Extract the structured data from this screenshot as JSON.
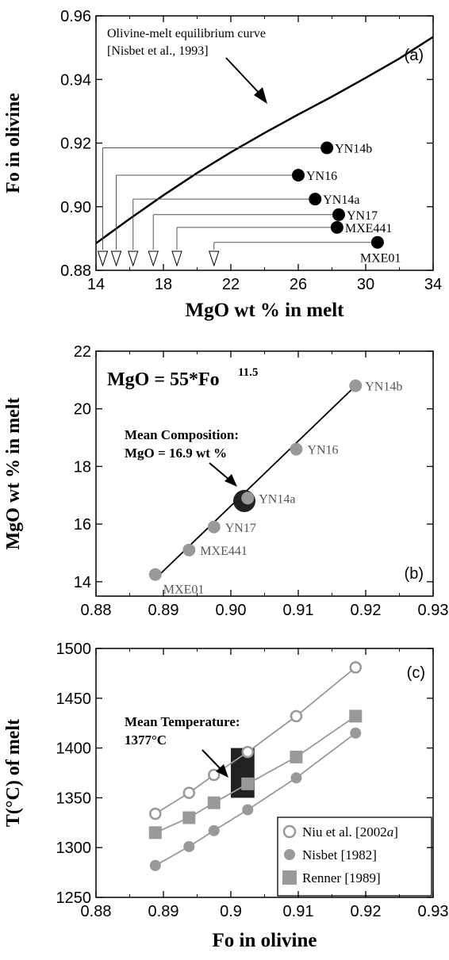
{
  "chart_data": [
    {
      "panel_label": "(a)",
      "type": "scatter",
      "xlabel": "MgO wt % in melt",
      "ylabel": "Fo in olivine",
      "xlim": [
        14,
        34
      ],
      "ylim": [
        0.88,
        0.96
      ],
      "xticks": [
        "14",
        "18",
        "22",
        "26",
        "30",
        "34"
      ],
      "yticks": [
        "0.88",
        "0.90",
        "0.92",
        "0.94",
        "0.96"
      ],
      "curve": {
        "label_line1": "Olivine-melt equilibrium curve",
        "label_line2": "[Nisbet et al., 1993]",
        "x": [
          14,
          16,
          18,
          20,
          22,
          24,
          26,
          28,
          30,
          32,
          34
        ],
        "y": [
          0.8885,
          0.8962,
          0.9036,
          0.9106,
          0.9171,
          0.9232,
          0.929,
          0.9346,
          0.9405,
          0.9466,
          0.9534
        ]
      },
      "points": [
        {
          "name": "YN14b",
          "x": 27.7,
          "y": 0.9185
        },
        {
          "name": "YN16",
          "x": 26.0,
          "y": 0.9099
        },
        {
          "name": "YN14a",
          "x": 27.0,
          "y": 0.9024
        },
        {
          "name": "YN17",
          "x": 28.4,
          "y": 0.8975
        },
        {
          "name": "MXE441",
          "x": 28.3,
          "y": 0.8935
        },
        {
          "name": "MXE01",
          "x": 30.7,
          "y": 0.8888
        }
      ],
      "equilibrium_mgo": [
        14.4,
        15.2,
        16.2,
        17.4,
        18.8,
        21.0
      ]
    },
    {
      "panel_label": "(b)",
      "type": "scatter",
      "xlabel": "",
      "ylabel": "MgO wt % in melt",
      "xlim": [
        0.88,
        0.93
      ],
      "ylim": [
        13.5,
        22
      ],
      "xticks": [
        "0.88",
        "0.89",
        "0.90",
        "0.91",
        "0.92",
        "0.93"
      ],
      "yticks": [
        "14",
        "16",
        "18",
        "20",
        "22"
      ],
      "equation": "MgO = 55*Fo",
      "equation_exponent": "11.5",
      "mean_label_line1": "Mean Composition:",
      "mean_label_line2": "MgO = 16.9 wt %",
      "mean": {
        "x": 0.902,
        "y": 16.8
      },
      "fit_line": {
        "x": [
          0.889,
          0.9185
        ],
        "y": [
          14.15,
          20.8
        ]
      },
      "points": [
        {
          "name": "YN14b",
          "x": 0.9185,
          "y": 20.8
        },
        {
          "name": "YN16",
          "x": 0.9097,
          "y": 18.6
        },
        {
          "name": "YN14a",
          "x": 0.9025,
          "y": 16.9
        },
        {
          "name": "YN17",
          "x": 0.8975,
          "y": 15.9
        },
        {
          "name": "MXE441",
          "x": 0.8938,
          "y": 15.1
        },
        {
          "name": "MXE01",
          "x": 0.8888,
          "y": 14.25
        }
      ]
    },
    {
      "panel_label": "(c)",
      "type": "line",
      "xlabel": "Fo in olivine",
      "ylabel": "T(°C) of melt",
      "xlim": [
        0.88,
        0.93
      ],
      "ylim": [
        1250,
        1500
      ],
      "xticks": [
        "0.88",
        "0.89",
        "0.9",
        "0.91",
        "0.92",
        "0.93"
      ],
      "yticks": [
        "1250",
        "1300",
        "1350",
        "1400",
        "1450",
        "1500"
      ],
      "mean_label_line1": "Mean Temperature:",
      "mean_label_line2": "1377°C",
      "mean_box": {
        "x0": 0.9,
        "x1": 0.9035,
        "y0": 1350,
        "y1": 1400
      },
      "x": [
        0.8888,
        0.8938,
        0.8975,
        0.9025,
        0.9097,
        0.9185
      ],
      "series": [
        {
          "name": "Niu et al. [2002",
          "name_italic": "a",
          "name_end": "]",
          "marker": "open-circle",
          "values": [
            1334,
            1355,
            1373,
            1396,
            1432,
            1481
          ]
        },
        {
          "name": "Nisbet [1982]",
          "marker": "filled-circle",
          "values": [
            1282,
            1301,
            1317,
            1338,
            1370,
            1415
          ]
        },
        {
          "name": "Renner [1989]",
          "marker": "filled-square",
          "values": [
            1315,
            1330,
            1345,
            1364,
            1391,
            1432
          ]
        }
      ]
    }
  ]
}
